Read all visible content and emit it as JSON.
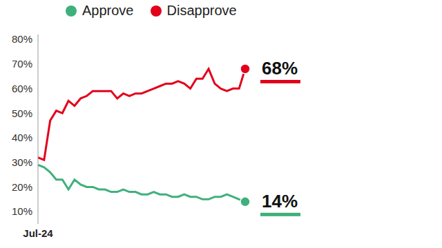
{
  "chart_data": {
    "type": "line",
    "categories": [
      "Jul-24",
      null,
      null,
      null,
      null,
      null,
      null,
      null,
      null,
      null,
      null,
      null,
      null,
      null,
      null,
      null,
      null,
      null,
      null,
      null,
      null,
      null,
      null,
      null,
      null,
      null,
      null,
      null,
      null,
      null,
      null,
      null,
      null,
      null,
      null
    ],
    "series": [
      {
        "name": "Approve",
        "color": "#3fb07c",
        "values": [
          29,
          28,
          26,
          23,
          23,
          19,
          23,
          21,
          20,
          20,
          19,
          19,
          18,
          18,
          19,
          18,
          18,
          17,
          17,
          18,
          17,
          17,
          16,
          16,
          17,
          16,
          16,
          15,
          15,
          16,
          16,
          17,
          16,
          15,
          14
        ],
        "value_labels": [
          null,
          null,
          null,
          null,
          null,
          null,
          null,
          null,
          null,
          null,
          null,
          null,
          null,
          null,
          null,
          null,
          null,
          null,
          null,
          null,
          null,
          null,
          null,
          null,
          null,
          null,
          null,
          null,
          null,
          null,
          null,
          null,
          null,
          null,
          "14%"
        ]
      },
      {
        "name": "Disapprove",
        "color": "#e3001b",
        "values": [
          32,
          31,
          47,
          51,
          50,
          55,
          53,
          56,
          57,
          59,
          59,
          59,
          59,
          56,
          58,
          57,
          58,
          58,
          59,
          60,
          61,
          62,
          62,
          63,
          62,
          60,
          64,
          64,
          68,
          62,
          60,
          59,
          60,
          60,
          68
        ],
        "value_labels": [
          null,
          null,
          null,
          null,
          null,
          null,
          null,
          null,
          null,
          null,
          null,
          null,
          null,
          null,
          null,
          null,
          null,
          null,
          null,
          null,
          null,
          null,
          null,
          null,
          null,
          null,
          null,
          null,
          null,
          null,
          null,
          null,
          null,
          null,
          "68%"
        ]
      }
    ],
    "ylim": [
      5,
      82
    ],
    "yticks": [
      {
        "value": 10,
        "label": "10%"
      },
      {
        "value": 20,
        "label": "20%"
      },
      {
        "value": 30,
        "label": "30%"
      },
      {
        "value": 40,
        "label": "40%"
      },
      {
        "value": 50,
        "label": "50%"
      },
      {
        "value": 60,
        "label": "60%"
      },
      {
        "value": 70,
        "label": "70%"
      },
      {
        "value": 80,
        "label": "80%"
      }
    ],
    "grid": false,
    "legend": "top"
  }
}
